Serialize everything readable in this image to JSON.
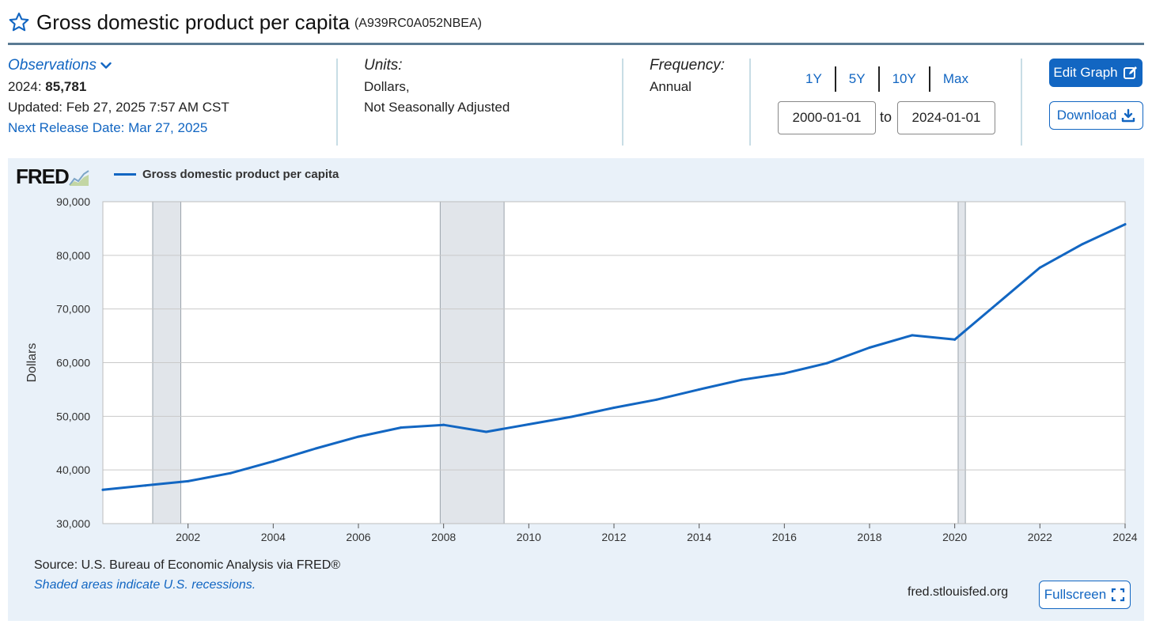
{
  "header": {
    "title": "Gross domestic product per capita",
    "series_id": "(A939RC0A052NBEA)"
  },
  "observations": {
    "label": "Observations",
    "latest_year": "2024:",
    "latest_value": "85,781",
    "updated": "Updated: Feb 27, 2025 7:57 AM CST",
    "next_release": "Next Release Date: Mar 27, 2025"
  },
  "units": {
    "label": "Units:",
    "line1": "Dollars,",
    "line2": "Not Seasonally Adjusted"
  },
  "frequency": {
    "label": "Frequency:",
    "value": "Annual"
  },
  "range": {
    "buttons": [
      "1Y",
      "5Y",
      "10Y",
      "Max"
    ],
    "start": "2000-01-01",
    "to_label": "to",
    "end": "2024-01-01"
  },
  "actions": {
    "edit_graph": "Edit Graph",
    "download": "Download",
    "fullscreen": "Fullscreen"
  },
  "footer": {
    "source": "Source: U.S. Bureau of Economic Analysis via FRED®",
    "shaded_note": "Shaded areas indicate U.S. recessions.",
    "site": "fred.stlouisfed.org"
  },
  "brand": {
    "logo_text": "FRED",
    "accent": "#1266c2",
    "panel_bg": "#e9f1f9",
    "recession_fill": "#e1e5ea"
  },
  "chart_data": {
    "type": "line",
    "title": "",
    "ylabel": "Dollars",
    "xlabel": "",
    "ylim": [
      30000,
      90000
    ],
    "xlim": [
      2000,
      2024
    ],
    "yticks": [
      30000,
      40000,
      50000,
      60000,
      70000,
      80000,
      90000
    ],
    "ytick_labels": [
      "30,000",
      "40,000",
      "50,000",
      "60,000",
      "70,000",
      "80,000",
      "90,000"
    ],
    "xticks": [
      2002,
      2004,
      2006,
      2008,
      2010,
      2012,
      2014,
      2016,
      2018,
      2020,
      2022,
      2024
    ],
    "xtick_labels": [
      "2002",
      "2004",
      "2006",
      "2008",
      "2010",
      "2012",
      "2014",
      "2016",
      "2018",
      "2020",
      "2022",
      "2024"
    ],
    "grid": true,
    "legend_position": "top-left",
    "recessions": [
      [
        2001.17,
        2001.83
      ],
      [
        2007.92,
        2009.42
      ],
      [
        2020.08,
        2020.25
      ]
    ],
    "series": [
      {
        "name": "Gross domestic product per capita",
        "color": "#1266c2",
        "x": [
          2000,
          2001,
          2002,
          2003,
          2004,
          2005,
          2006,
          2007,
          2008,
          2009,
          2010,
          2011,
          2012,
          2013,
          2014,
          2015,
          2016,
          2017,
          2018,
          2019,
          2020,
          2021,
          2022,
          2023,
          2024
        ],
        "y": [
          36300,
          37100,
          37900,
          39400,
          41600,
          44000,
          46200,
          47900,
          48400,
          47100,
          48500,
          49900,
          51600,
          53100,
          55000,
          56800,
          58000,
          59900,
          62800,
          65100,
          64300,
          71000,
          77700,
          82100,
          85781
        ]
      }
    ]
  }
}
